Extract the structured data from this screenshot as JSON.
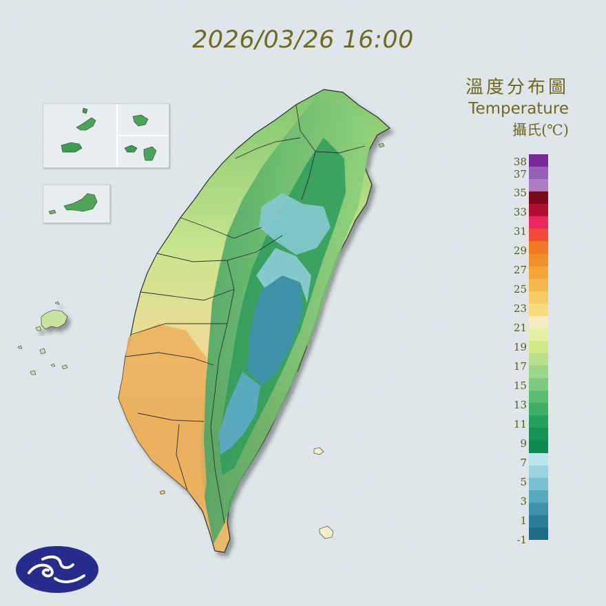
{
  "timestamp": "2026/03/26 16:00",
  "legend": {
    "title_zh": "溫度分布圖",
    "title_en": "Temperature",
    "unit": "攝氏(℃)",
    "labels": [
      "38",
      "37",
      "35",
      "33",
      "31",
      "29",
      "27",
      "25",
      "23",
      "21",
      "19",
      "17",
      "15",
      "13",
      "11",
      "9",
      "7",
      "5",
      "3",
      "1",
      "-1"
    ],
    "colors": [
      "#7b2a9a",
      "#9660b3",
      "#ad7cc4",
      "#7a0a1a",
      "#b01030",
      "#e8285f",
      "#f24a3a",
      "#ee7a22",
      "#f0902a",
      "#f2a63a",
      "#f3b84c",
      "#f4cb62",
      "#f5dc7c",
      "#f3edc0",
      "#e6f0a2",
      "#d2ea86",
      "#b8e08a",
      "#9ad68a",
      "#7ccb80",
      "#5dbe72",
      "#40af66",
      "#27a15e",
      "#169257",
      "#0e8a52",
      "#b8e6ea",
      "#98d3df",
      "#78bfd0",
      "#5aaabf",
      "#3f92a9",
      "#2a7d95",
      "#1d6e84"
    ]
  },
  "map": {
    "islands_inset": [
      "Matsu",
      "Kinmen"
    ],
    "legend_colors": {
      "mountain_cold": "#3a8ea6",
      "mountain_cool": "#7fc3cf",
      "highland": "#35a060",
      "hills": "#8fd06f",
      "plain_north": "#d3e797",
      "plain_south": "#e9b35c",
      "border": "#2d2d2d"
    }
  },
  "logo": {
    "name": "cwa-logo"
  }
}
